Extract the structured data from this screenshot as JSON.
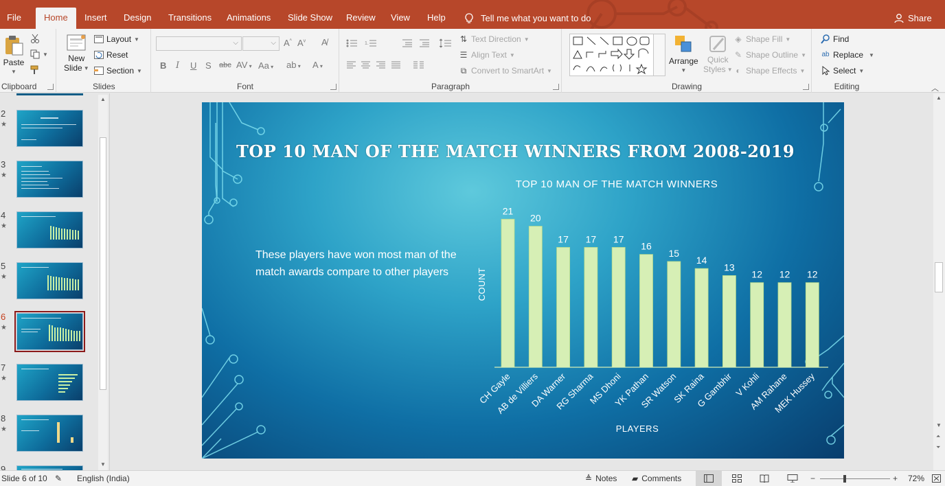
{
  "tabs": [
    {
      "label": "File",
      "active": false
    },
    {
      "label": "Home",
      "active": true
    },
    {
      "label": "Insert",
      "active": false
    },
    {
      "label": "Design",
      "active": false
    },
    {
      "label": "Transitions",
      "active": false
    },
    {
      "label": "Animations",
      "active": false
    },
    {
      "label": "Slide Show",
      "active": false
    },
    {
      "label": "Review",
      "active": false
    },
    {
      "label": "View",
      "active": false
    },
    {
      "label": "Help",
      "active": false
    }
  ],
  "tell_me": "Tell me what you want to do",
  "share_label": "Share",
  "ribbon": {
    "clipboard": {
      "label": "Clipboard",
      "paste": "Paste"
    },
    "slides": {
      "label": "Slides",
      "new_slide_line1": "New",
      "new_slide_line2": "Slide",
      "layout": "Layout",
      "reset": "Reset",
      "section": "Section"
    },
    "font": {
      "label": "Font"
    },
    "paragraph": {
      "label": "Paragraph",
      "text_direction": "Text Direction",
      "align_text": "Align Text",
      "convert_smartart": "Convert to SmartArt"
    },
    "drawing": {
      "label": "Drawing",
      "arrange": "Arrange",
      "quick_styles_line1": "Quick",
      "quick_styles_line2": "Styles",
      "shape_fill": "Shape Fill",
      "shape_outline": "Shape Outline",
      "shape_effects": "Shape Effects"
    },
    "editing": {
      "label": "Editing",
      "find": "Find",
      "replace": "Replace",
      "select": "Select"
    }
  },
  "thumbnails": [
    {
      "num": "2",
      "active": false
    },
    {
      "num": "3",
      "active": false
    },
    {
      "num": "4",
      "active": false
    },
    {
      "num": "5",
      "active": false
    },
    {
      "num": "6",
      "active": true
    },
    {
      "num": "7",
      "active": false
    },
    {
      "num": "8",
      "active": false
    },
    {
      "num": "9",
      "active": false
    }
  ],
  "slide": {
    "title": "Top 10 Man of the Match Winners from 2008-2019",
    "body": "These players have won most man of the match awards compare to other players"
  },
  "chart_data": {
    "type": "bar",
    "title": "TOP 10 MAN OF THE MATCH WINNERS",
    "xlabel": "PLAYERS",
    "ylabel": "COUNT",
    "categories": [
      "CH Gayle",
      "AB de Villiers",
      "DA Warner",
      "RG Sharma",
      "MS Dhoni",
      "YK Pathan",
      "SR Watson",
      "SK Raina",
      "G Gambhir",
      "V Kohli",
      "AM Rahane",
      "MEK Hussey"
    ],
    "values": [
      21,
      20,
      17,
      17,
      17,
      16,
      15,
      14,
      13,
      12,
      12,
      12
    ],
    "ylim": [
      0,
      22
    ],
    "grid": false,
    "data_labels": true,
    "bar_color": "#d6efb5"
  },
  "status": {
    "slide_info": "Slide 6 of 10",
    "language": "English (India)",
    "notes": "Notes",
    "comments": "Comments",
    "zoom": "72%"
  },
  "colors": {
    "accent": "#b7472a"
  }
}
